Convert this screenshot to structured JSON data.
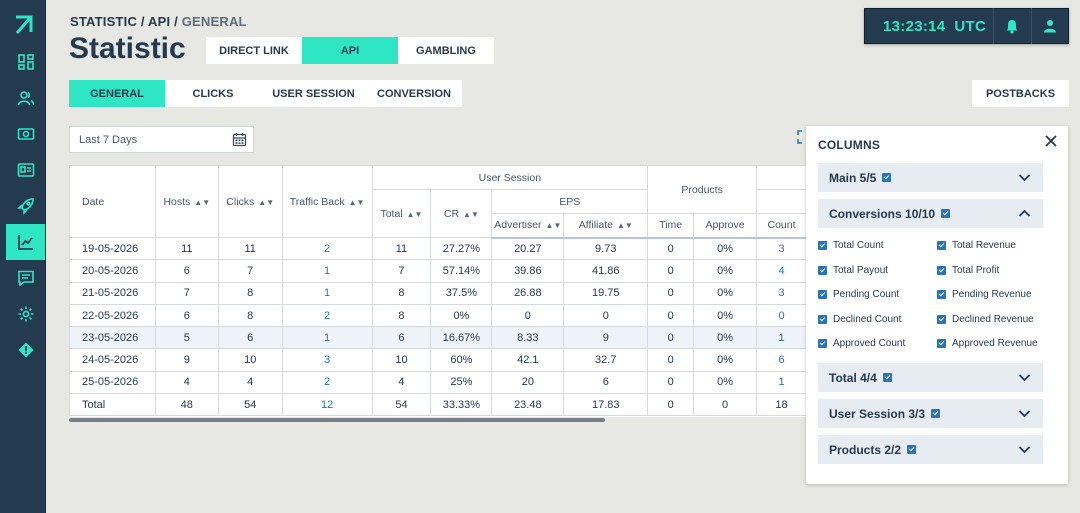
{
  "breadcrumb": {
    "part1": "STATISTIC",
    "sep1": " / ",
    "part2": "API",
    "sep2": " / ",
    "part3": "GENERAL"
  },
  "page_title": "Statistic",
  "main_tabs": [
    {
      "label": "DIRECT LINK",
      "active": false
    },
    {
      "label": "API",
      "active": true
    },
    {
      "label": "GAMBLING",
      "active": false
    }
  ],
  "sub_tabs": [
    {
      "label": "GENERAL",
      "active": true
    },
    {
      "label": "CLICKS",
      "active": false
    },
    {
      "label": "USER SESSION",
      "active": false
    },
    {
      "label": "CONVERSION",
      "active": false
    }
  ],
  "topbar": {
    "time": "13:23:14",
    "timezone": "UTC",
    "icons": [
      "bell-icon",
      "user-icon"
    ]
  },
  "postbacks_label": "POSTBACKS",
  "date_filter": {
    "value": "Last 7 Days",
    "icon": "calendar-icon"
  },
  "sidebar": {
    "logo": "arrow-logo-icon",
    "items": [
      {
        "icon": "dashboard-icon",
        "active": false
      },
      {
        "icon": "users-icon",
        "active": false
      },
      {
        "icon": "money-icon",
        "active": false
      },
      {
        "icon": "id-card-icon",
        "active": false
      },
      {
        "icon": "rocket-icon",
        "active": false
      },
      {
        "icon": "chart-icon",
        "active": true
      },
      {
        "icon": "chat-icon",
        "active": false
      },
      {
        "icon": "gear-icon",
        "active": false
      },
      {
        "icon": "alert-icon",
        "active": false
      }
    ]
  },
  "table": {
    "headers": {
      "date": "Date",
      "hosts": "Hosts",
      "clicks": "Clicks",
      "traffic_back": "Traffic Back",
      "user_session": "User Session",
      "total": "Total",
      "cr": "CR",
      "eps": "EPS",
      "advertiser": "Advertiser",
      "affiliate": "Affiliate",
      "products": "Products",
      "time": "Time",
      "approve": "Approve",
      "count": "Count"
    },
    "rows": [
      {
        "date": "19-05-2026",
        "hosts": "11",
        "clicks": "11",
        "tb": "2",
        "total": "11",
        "cr": "27.27%",
        "adv": "20.27",
        "aff": "9.73",
        "time": "0",
        "approve": "0%",
        "count": "3"
      },
      {
        "date": "20-05-2026",
        "hosts": "6",
        "clicks": "7",
        "tb": "1",
        "total": "7",
        "cr": "57.14%",
        "adv": "39.86",
        "aff": "41.86",
        "time": "0",
        "approve": "0%",
        "count": "4"
      },
      {
        "date": "21-05-2026",
        "hosts": "7",
        "clicks": "8",
        "tb": "1",
        "total": "8",
        "cr": "37.5%",
        "adv": "26.88",
        "aff": "19.75",
        "time": "0",
        "approve": "0%",
        "count": "3"
      },
      {
        "date": "22-05-2026",
        "hosts": "6",
        "clicks": "8",
        "tb": "2",
        "total": "8",
        "cr": "0%",
        "adv": "0",
        "aff": "0",
        "time": "0",
        "approve": "0%",
        "count": "0"
      },
      {
        "date": "23-05-2026",
        "hosts": "5",
        "clicks": "6",
        "tb": "1",
        "total": "6",
        "cr": "16.67%",
        "adv": "8.33",
        "aff": "9",
        "time": "0",
        "approve": "0%",
        "count": "1"
      },
      {
        "date": "24-05-2026",
        "hosts": "9",
        "clicks": "10",
        "tb": "3",
        "total": "10",
        "cr": "60%",
        "adv": "42.1",
        "aff": "32.7",
        "time": "0",
        "approve": "0%",
        "count": "6"
      },
      {
        "date": "25-05-2026",
        "hosts": "4",
        "clicks": "4",
        "tb": "2",
        "total": "4",
        "cr": "25%",
        "adv": "20",
        "aff": "6",
        "time": "0",
        "approve": "0%",
        "count": "1"
      }
    ],
    "totals": {
      "label": "Total",
      "hosts": "48",
      "clicks": "54",
      "tb": "12",
      "total": "54",
      "cr": "33.33%",
      "adv": "23.48",
      "aff": "17.83",
      "time": "0",
      "approve": "0",
      "count": "18"
    }
  },
  "columns_panel": {
    "title": "COLUMNS",
    "groups": [
      {
        "label": "Main 5/5",
        "expanded": false
      },
      {
        "label": "Conversions 10/10",
        "expanded": true
      },
      {
        "label": "Total 4/4",
        "expanded": false
      },
      {
        "label": "User Session 3/3",
        "expanded": false
      },
      {
        "label": "Products 2/2",
        "expanded": false
      }
    ],
    "conversion_options_left": [
      "Total Count",
      "Total Payout",
      "Pending Count",
      "Declined Count",
      "Approved Count"
    ],
    "conversion_options_right": [
      "Total Revenue",
      "Total Profit",
      "Pending Revenue",
      "Declined Revenue",
      "Approved Revenue"
    ]
  },
  "colors": {
    "accent": "#2ee6c4",
    "navy": "#243a4e",
    "link": "#2575b8",
    "background": "#e7e7e4"
  }
}
